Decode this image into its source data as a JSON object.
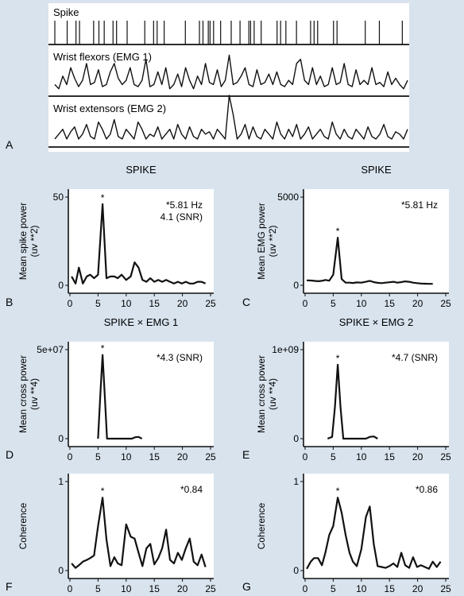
{
  "chart_data": [
    {
      "panel": "A",
      "type": "line",
      "traces": [
        {
          "label": "Spike",
          "kind": "raster",
          "events": [
            0.0,
            0.035,
            0.06,
            0.07,
            0.11,
            0.125,
            0.14,
            0.165,
            0.175,
            0.205,
            0.255,
            0.28,
            0.29,
            0.31,
            0.37,
            0.41,
            0.42,
            0.45,
            0.435,
            0.44,
            0.47,
            0.5,
            0.525,
            0.55,
            0.555,
            0.565,
            0.585,
            0.63,
            0.64,
            0.655,
            0.685,
            0.725,
            0.735,
            0.745,
            0.79,
            0.8,
            0.88,
            0.92,
            0.985
          ]
        },
        {
          "label": "Wrist flexors (EMG 1)",
          "kind": "waveform",
          "values": [
            0.2,
            0.1,
            0.4,
            0.2,
            0.6,
            0.35,
            0.15,
            0.3,
            0.7,
            0.2,
            0.25,
            0.55,
            0.15,
            0.2,
            0.5,
            0.7,
            0.35,
            0.2,
            0.3,
            0.6,
            0.2,
            0.15,
            0.3,
            0.8,
            0.15,
            0.2,
            0.5,
            0.2,
            0.6,
            0.1,
            0.2,
            0.45,
            0.15,
            0.6,
            0.3,
            0.1,
            0.4,
            0.2,
            0.7,
            0.25,
            0.2,
            0.55,
            0.15,
            0.3,
            0.9,
            0.2,
            0.25,
            0.4,
            0.6,
            0.2,
            0.15,
            0.55,
            0.2,
            0.25,
            0.45,
            0.2,
            0.5,
            0.2,
            0.15,
            0.3,
            0.2,
            0.7,
            0.8,
            0.3,
            0.2,
            0.6,
            0.2,
            0.4,
            0.15,
            0.2,
            0.6,
            0.2,
            0.25,
            0.7,
            0.2,
            0.15,
            0.55,
            0.2,
            0.3,
            0.2,
            0.6,
            0.2,
            0.25,
            0.15,
            0.5,
            0.2,
            0.35,
            0.2,
            0.1,
            0.3
          ]
        },
        {
          "label": "Wrist extensors (EMG 2)",
          "kind": "waveform",
          "values": [
            0.1,
            0.2,
            0.3,
            0.1,
            0.25,
            0.35,
            0.1,
            0.2,
            0.4,
            0.15,
            0.1,
            0.45,
            0.3,
            0.1,
            0.2,
            0.5,
            0.15,
            0.1,
            0.3,
            0.2,
            0.1,
            0.45,
            0.3,
            0.1,
            0.2,
            0.15,
            0.35,
            0.1,
            0.2,
            0.3,
            0.1,
            0.4,
            0.2,
            0.1,
            0.35,
            0.15,
            0.1,
            0.3,
            0.2,
            0.25,
            0.1,
            0.3,
            0.2,
            0.1,
            1.0,
            0.6,
            0.1,
            0.2,
            0.4,
            0.1,
            0.35,
            0.15,
            0.1,
            0.3,
            0.2,
            0.1,
            0.45,
            0.2,
            0.1,
            0.3,
            0.15,
            0.4,
            0.1,
            0.2,
            0.35,
            0.1,
            0.2,
            0.3,
            0.15,
            0.1,
            0.45,
            0.2,
            0.1,
            0.3,
            0.15,
            0.1,
            0.3,
            0.2,
            0.1,
            0.35,
            0.15,
            0.1,
            0.2,
            0.4,
            0.15,
            0.1,
            0.25,
            0.2,
            0.1,
            0.3
          ]
        }
      ]
    },
    {
      "panel": "B",
      "type": "line",
      "title": "SPIKE",
      "ylabel": "Mean spike power (uv **2)",
      "xlim": [
        0,
        25
      ],
      "ylim": [
        0,
        50
      ],
      "xticks": [
        0,
        5,
        10,
        15,
        20,
        25
      ],
      "ytick_labels": [
        "0",
        "50"
      ],
      "annotations": [
        "*5.81 Hz",
        "4.1 (SNR)"
      ],
      "peak_marker": "*",
      "x": [
        0.3,
        1,
        1.6,
        2.3,
        3,
        3.6,
        4.3,
        5,
        5.8,
        6.5,
        7.2,
        7.9,
        8.5,
        9.2,
        10,
        10.8,
        11.5,
        12.2,
        12.9,
        13.6,
        14.3,
        15,
        15.7,
        16.4,
        17.1,
        17.8,
        18.5,
        19.2,
        19.9,
        20.6,
        21.3,
        22,
        22.7,
        23.4,
        24.1
      ],
      "y": [
        5,
        1,
        10,
        1,
        5,
        6,
        4,
        6,
        46,
        4,
        5,
        5,
        4,
        6,
        3,
        5,
        13,
        10,
        3,
        2,
        4,
        2,
        3,
        2,
        3,
        2,
        1,
        2,
        1,
        2,
        1,
        1,
        2,
        2,
        1
      ]
    },
    {
      "panel": "C",
      "type": "line",
      "title": "SPIKE",
      "ylabel": "Mean EMG power (uv **2)",
      "xlim": [
        0,
        25
      ],
      "ylim": [
        0,
        5000
      ],
      "xticks": [
        0,
        5,
        10,
        15,
        20,
        25
      ],
      "ytick_labels": [
        "0",
        "5000"
      ],
      "annotations": [
        "*5.81 Hz"
      ],
      "peak_marker": "*",
      "x": [
        0.3,
        1,
        1.6,
        2.3,
        3,
        3.6,
        4.3,
        5,
        5.8,
        6.5,
        7.2,
        7.9,
        8.5,
        9.2,
        10,
        10.8,
        11.5,
        12.2,
        12.9,
        13.6,
        14.3,
        15,
        15.7,
        16.4,
        17.1,
        17.8,
        18.5,
        19.2,
        19.9,
        20.6,
        21.3,
        22,
        22.7
      ],
      "y": [
        280,
        270,
        250,
        230,
        250,
        300,
        260,
        600,
        2700,
        350,
        150,
        150,
        130,
        160,
        150,
        200,
        250,
        180,
        140,
        120,
        150,
        170,
        200,
        150,
        180,
        220,
        200,
        150,
        120,
        100,
        90,
        80,
        80
      ]
    },
    {
      "panel": "D",
      "type": "line",
      "title": "SPIKE × EMG 1",
      "ylabel": "Mean cross power (uv **4)",
      "xlim": [
        0,
        25
      ],
      "ylim": [
        0,
        50000000.0
      ],
      "xticks": [
        0,
        5,
        10,
        15,
        20,
        25
      ],
      "ytick_labels": [
        "0",
        "5e+07"
      ],
      "annotations": [
        "*4.3 (SNR)"
      ],
      "peak_marker": "*",
      "x": [
        5.0,
        5.4,
        5.8,
        6.2,
        6.6,
        11.0,
        11.6,
        12.2,
        12.8
      ],
      "y": [
        0,
        24000000.0,
        47000000.0,
        24000000.0,
        0,
        0,
        800000,
        1000000,
        0
      ]
    },
    {
      "panel": "E",
      "type": "line",
      "title": "SPIKE × EMG 2",
      "ylabel": "Mean cross power (uv **4)",
      "xlim": [
        0,
        25
      ],
      "ylim": [
        0,
        1000000000.0
      ],
      "xticks": [
        0,
        5,
        10,
        15,
        20,
        25
      ],
      "ytick_labels": [
        "0",
        "1e+09"
      ],
      "annotations": [
        "*4.7 (SNR)"
      ],
      "peak_marker": "*",
      "x": [
        4.0,
        4.8,
        5.3,
        5.8,
        6.3,
        6.8,
        10.8,
        11.5,
        12.2,
        12.9
      ],
      "y": [
        0,
        20000000,
        350000000,
        830000000,
        350000000,
        0,
        0,
        20000000,
        25000000,
        0
      ]
    },
    {
      "panel": "F",
      "type": "line",
      "ylabel": "Coherence",
      "xlim": [
        0,
        25
      ],
      "ylim": [
        0,
        1
      ],
      "xticks": [
        0,
        5,
        10,
        15,
        20,
        25
      ],
      "ytick_labels": [
        "0",
        "1"
      ],
      "annotations": [
        "*0.84"
      ],
      "peak_marker": "*",
      "x": [
        0.3,
        1,
        1.6,
        2.3,
        3,
        3.6,
        4.3,
        5,
        5.8,
        6.5,
        7.2,
        7.9,
        8.5,
        9.2,
        10,
        10.8,
        11.5,
        12.2,
        12.9,
        13.6,
        14.3,
        15,
        15.7,
        16.4,
        17.1,
        17.8,
        18.5,
        19.2,
        19.9,
        20.6,
        21.3,
        22,
        22.7,
        23.4,
        24.1
      ],
      "y": [
        0.08,
        0.03,
        0.06,
        0.1,
        0.12,
        0.14,
        0.17,
        0.5,
        0.82,
        0.35,
        0.05,
        0.15,
        0.08,
        0.06,
        0.52,
        0.38,
        0.36,
        0.2,
        0.05,
        0.25,
        0.3,
        0.07,
        0.14,
        0.25,
        0.46,
        0.12,
        0.08,
        0.2,
        0.12,
        0.25,
        0.36,
        0.1,
        0.06,
        0.18,
        0.04
      ]
    },
    {
      "panel": "G",
      "type": "line",
      "ylabel": "Coherence",
      "xlim": [
        0,
        25
      ],
      "ylim": [
        0,
        1
      ],
      "xticks": [
        0,
        5,
        10,
        15,
        20,
        25
      ],
      "ytick_labels": [
        "0",
        "1"
      ],
      "annotations": [
        "*0.86"
      ],
      "peak_marker": "*",
      "x": [
        0.3,
        1,
        1.6,
        2.3,
        3,
        3.6,
        4.3,
        5,
        5.8,
        6.5,
        7.2,
        7.9,
        8.5,
        9.2,
        10,
        10.8,
        11.5,
        12.2,
        12.9,
        13.6,
        14.3,
        15,
        15.7,
        16.4,
        17.1,
        17.8,
        18.5,
        19.2,
        19.9,
        20.6,
        21.3,
        22,
        22.7,
        23.4,
        24.1
      ],
      "y": [
        0.02,
        0.1,
        0.14,
        0.14,
        0.06,
        0.2,
        0.4,
        0.5,
        0.82,
        0.65,
        0.4,
        0.2,
        0.1,
        0.05,
        0.24,
        0.6,
        0.72,
        0.3,
        0.05,
        0.04,
        0.03,
        0.05,
        0.08,
        0.04,
        0.2,
        0.06,
        0.03,
        0.15,
        0.04,
        0.06,
        0.04,
        0.02,
        0.1,
        0.04,
        0.1
      ]
    }
  ]
}
